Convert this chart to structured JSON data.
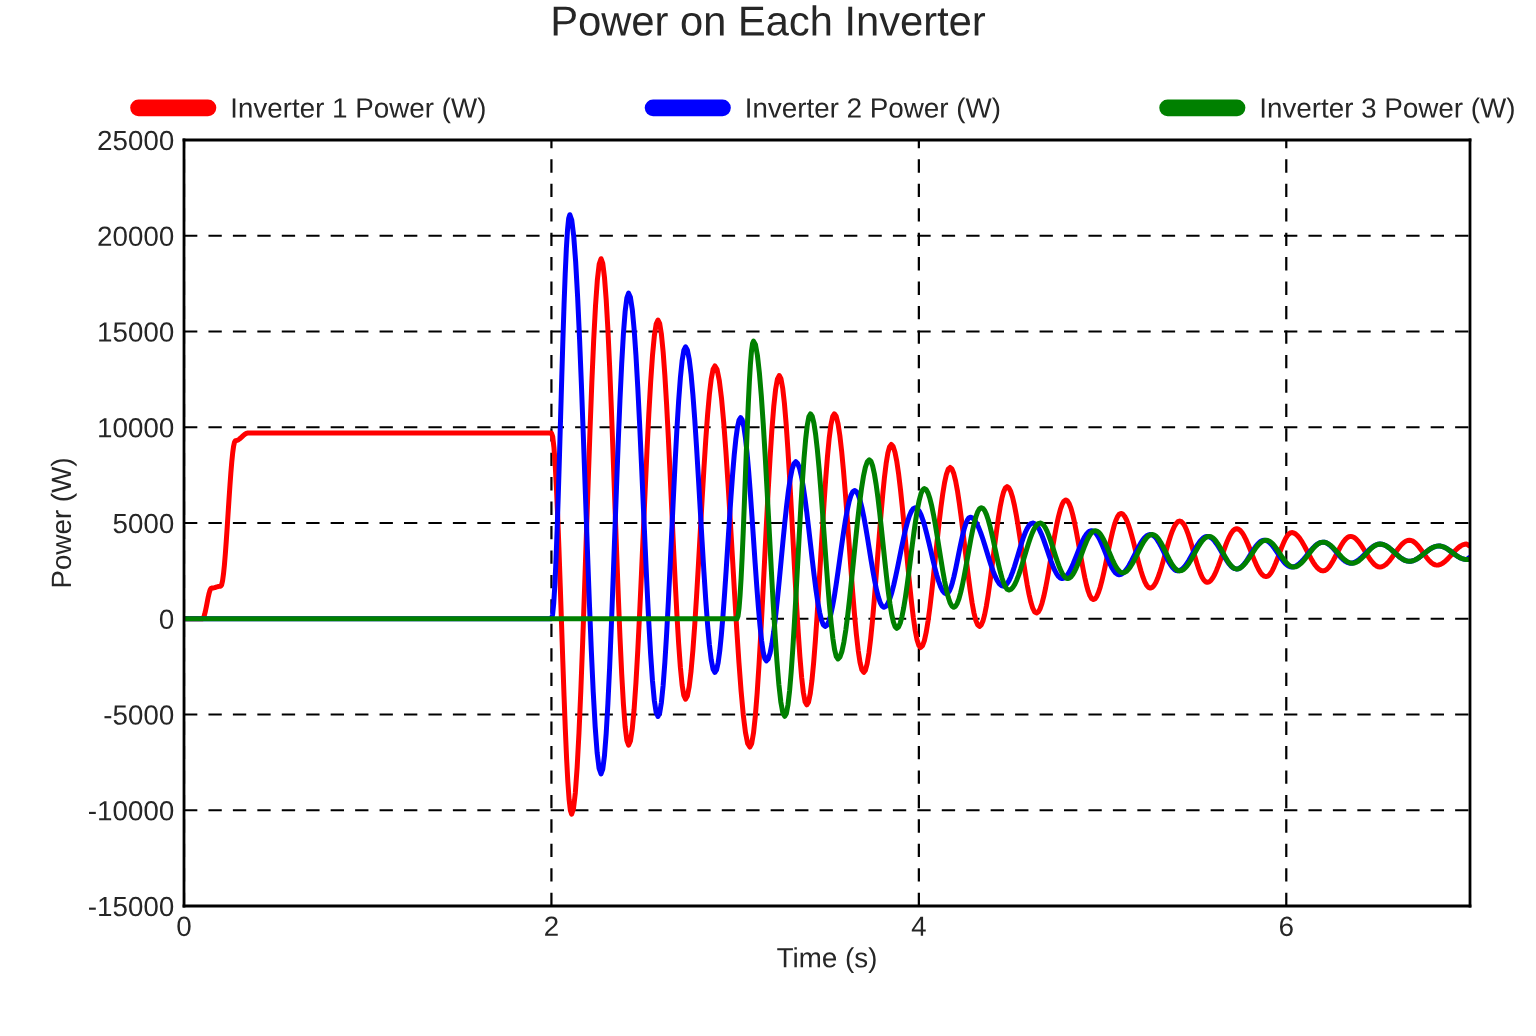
{
  "chart_data": {
    "type": "line",
    "title": "Power on Each Inverter",
    "xlabel": "Time (s)",
    "ylabel": "Power (W)",
    "xlim": [
      0,
      7
    ],
    "xticks": [
      0,
      2,
      4,
      6
    ],
    "ylim": [
      -15000,
      25000
    ],
    "yticks": [
      -15000,
      -10000,
      -5000,
      0,
      5000,
      10000,
      15000,
      20000,
      25000
    ],
    "grid": true,
    "legend": "top",
    "line_style": "solid",
    "marker": "none",
    "series": [
      {
        "name": "Inverter 1 Power (W)",
        "color": "#ff0000",
        "x": [
          0,
          0.1,
          0.15,
          0.2,
          0.28,
          0.35,
          2.0,
          2.11,
          2.27,
          2.42,
          2.58,
          2.73,
          2.89,
          3.08,
          3.24,
          3.39,
          3.54,
          3.7,
          3.85,
          4.01,
          4.17,
          4.33,
          4.48,
          4.64,
          4.8,
          4.95,
          5.1,
          5.26,
          5.42,
          5.57,
          5.73,
          5.89,
          6.03,
          6.2,
          6.35,
          6.51,
          6.67,
          6.82,
          6.98,
          7.0
        ],
        "values": [
          0,
          0,
          1600,
          1700,
          9300,
          9700,
          9700,
          -10200,
          18800,
          -6600,
          15600,
          -4200,
          13200,
          -6700,
          12700,
          -4500,
          10700,
          -2800,
          9100,
          -1500,
          7900,
          -400,
          6900,
          300,
          6200,
          1000,
          5500,
          1600,
          5100,
          1900,
          4700,
          2200,
          4500,
          2500,
          4300,
          2700,
          4100,
          2800,
          3900,
          3800
        ]
      },
      {
        "name": "Inverter 2 Power (W)",
        "color": "#0000ff",
        "x": [
          0,
          2.0,
          2.1,
          2.27,
          2.42,
          2.58,
          2.73,
          2.89,
          3.03,
          3.17,
          3.33,
          3.49,
          3.65,
          3.81,
          3.98,
          4.15,
          4.28,
          4.46,
          4.62,
          4.78,
          4.94,
          5.09,
          5.26,
          5.41,
          5.57,
          5.73,
          5.88,
          6.03,
          6.2,
          6.35,
          6.51,
          6.67,
          6.83,
          6.98,
          7.0
        ],
        "values": [
          0,
          0,
          21100,
          -8100,
          17000,
          -5100,
          14200,
          -2800,
          10500,
          -2200,
          8200,
          -400,
          6700,
          600,
          5800,
          1300,
          5300,
          1700,
          5000,
          2100,
          4600,
          2300,
          4400,
          2500,
          4300,
          2600,
          4100,
          2700,
          4000,
          2900,
          3900,
          3000,
          3800,
          3100,
          3200
        ]
      },
      {
        "name": "Inverter 3 Power (W)",
        "color": "#008000",
        "x": [
          0,
          3.01,
          3.1,
          3.27,
          3.41,
          3.56,
          3.73,
          3.88,
          4.03,
          4.19,
          4.34,
          4.49,
          4.66,
          4.81,
          4.96,
          5.11,
          5.27,
          5.42,
          5.58,
          5.73,
          5.89,
          6.04,
          6.2,
          6.36,
          6.51,
          6.67,
          6.83,
          6.98,
          7.0
        ],
        "values": [
          0,
          0,
          14500,
          -5100,
          10700,
          -2100,
          8300,
          -500,
          6800,
          600,
          5800,
          1500,
          5000,
          2100,
          4600,
          2400,
          4400,
          2500,
          4300,
          2600,
          4100,
          2700,
          4000,
          2900,
          3900,
          3000,
          3800,
          3100,
          3100
        ]
      }
    ]
  }
}
